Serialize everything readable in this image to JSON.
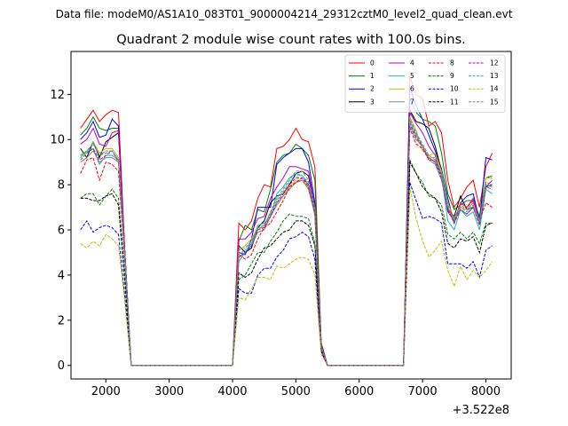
{
  "figure": {
    "suptitle": "Data file: modeM0/AS1A10_083T01_9000004214_29312cztM0_level2_quad_clean.evt"
  },
  "chart_data": {
    "type": "line",
    "title": "Quadrant 2 module wise count rates with 100.0s bins.",
    "xlabel": "",
    "ylabel": "",
    "x_offset_label": "+3.522e8",
    "xlim": [
      1450,
      8400
    ],
    "ylim": [
      -0.6,
      13.9
    ],
    "xticks": [
      2000,
      3000,
      4000,
      5000,
      6000,
      7000,
      8000
    ],
    "yticks": [
      0,
      2,
      4,
      6,
      8,
      10,
      12
    ],
    "grid": false,
    "legend": {
      "placement": "upper-right",
      "ncol": 4
    },
    "x": [
      1600,
      1700,
      1800,
      1900,
      2000,
      2100,
      2200,
      2300,
      2400,
      2500,
      2600,
      2700,
      2800,
      2900,
      3000,
      3100,
      3200,
      3300,
      3400,
      3500,
      3600,
      3700,
      3800,
      3900,
      4000,
      4100,
      4200,
      4300,
      4400,
      4500,
      4600,
      4700,
      4800,
      4900,
      5000,
      5100,
      5200,
      5300,
      5400,
      5500,
      5600,
      5700,
      5800,
      5900,
      6000,
      6100,
      6200,
      6300,
      6400,
      6500,
      6600,
      6700,
      6800,
      6900,
      7000,
      7100,
      7200,
      7300,
      7400,
      7500,
      7600,
      7700,
      7800,
      7900,
      8000,
      8100
    ],
    "series": [
      {
        "name": "0",
        "color": "#ff0000",
        "dash": false,
        "values": [
          10.5,
          10.9,
          11.3,
          10.8,
          11.1,
          11.3,
          11.2,
          5.0,
          0.0,
          0.0,
          0.0,
          0.0,
          0.0,
          0.0,
          0.0,
          0.0,
          0.0,
          0.0,
          0.0,
          0.0,
          0.0,
          0.0,
          0.0,
          0.0,
          0.0,
          6.3,
          6.0,
          6.4,
          7.4,
          8.0,
          7.9,
          9.6,
          9.7,
          10.0,
          10.5,
          10.0,
          9.9,
          8.8,
          1.0,
          0.0,
          0.0,
          0.0,
          0.0,
          0.0,
          0.0,
          0.0,
          0.0,
          0.0,
          0.0,
          0.0,
          0.0,
          0.0,
          12.8,
          12.0,
          11.8,
          10.6,
          10.8,
          10.3,
          8.2,
          7.0,
          7.4,
          7.9,
          8.2,
          7.0,
          8.8,
          9.4
        ]
      },
      {
        "name": "1",
        "color": "#008000",
        "dash": false,
        "values": [
          10.2,
          10.5,
          11.0,
          10.5,
          10.4,
          10.5,
          10.5,
          5.0,
          0.0,
          0.0,
          0.0,
          0.0,
          0.0,
          0.0,
          0.0,
          0.0,
          0.0,
          0.0,
          0.0,
          0.0,
          0.0,
          0.0,
          0.0,
          0.0,
          0.0,
          5.5,
          6.2,
          6.0,
          6.9,
          6.8,
          7.8,
          9.0,
          9.3,
          9.4,
          9.8,
          9.6,
          9.3,
          8.2,
          1.0,
          0.0,
          0.0,
          0.0,
          0.0,
          0.0,
          0.0,
          0.0,
          0.0,
          0.0,
          0.0,
          0.0,
          0.0,
          0.0,
          11.8,
          11.2,
          10.9,
          10.8,
          10.6,
          9.4,
          7.6,
          6.9,
          7.1,
          7.3,
          7.3,
          6.6,
          8.3,
          8.4
        ]
      },
      {
        "name": "2",
        "color": "#0000ff",
        "dash": false,
        "values": [
          10.0,
          10.3,
          10.8,
          10.1,
          10.2,
          10.9,
          10.6,
          5.0,
          0.0,
          0.0,
          0.0,
          0.0,
          0.0,
          0.0,
          0.0,
          0.0,
          0.0,
          0.0,
          0.0,
          0.0,
          0.0,
          0.0,
          0.0,
          0.0,
          0.0,
          5.0,
          4.9,
          5.6,
          7.0,
          7.0,
          7.0,
          8.9,
          9.2,
          9.4,
          9.6,
          9.6,
          9.0,
          7.2,
          0.9,
          0.0,
          0.0,
          0.0,
          0.0,
          0.0,
          0.0,
          0.0,
          0.0,
          0.0,
          0.0,
          0.0,
          0.0,
          0.0,
          12.3,
          11.5,
          10.9,
          10.2,
          9.5,
          8.7,
          7.4,
          6.3,
          7.2,
          7.5,
          7.6,
          6.4,
          9.2,
          9.1
        ]
      },
      {
        "name": "3",
        "color": "#000000",
        "dash": false,
        "values": [
          9.6,
          9.2,
          9.9,
          9.2,
          9.9,
          10.1,
          10.3,
          5.0,
          0.0,
          0.0,
          0.0,
          0.0,
          0.0,
          0.0,
          0.0,
          0.0,
          0.0,
          0.0,
          0.0,
          0.0,
          0.0,
          0.0,
          0.0,
          0.0,
          0.0,
          5.3,
          5.0,
          5.2,
          6.1,
          6.4,
          7.2,
          7.5,
          7.6,
          8.0,
          8.5,
          8.6,
          8.4,
          7.0,
          0.9,
          0.0,
          0.0,
          0.0,
          0.0,
          0.0,
          0.0,
          0.0,
          0.0,
          0.0,
          0.0,
          0.0,
          0.0,
          0.0,
          11.3,
          10.8,
          10.7,
          10.5,
          9.7,
          8.6,
          6.9,
          6.6,
          7.5,
          6.9,
          7.0,
          6.3,
          7.9,
          8.0
        ]
      },
      {
        "name": "4",
        "color": "#bf00bf",
        "dash": false,
        "values": [
          9.8,
          10.0,
          10.5,
          9.8,
          9.7,
          10.3,
          10.4,
          5.0,
          0.0,
          0.0,
          0.0,
          0.0,
          0.0,
          0.0,
          0.0,
          0.0,
          0.0,
          0.0,
          0.0,
          0.0,
          0.0,
          0.0,
          0.0,
          0.0,
          0.0,
          5.6,
          5.6,
          5.9,
          6.5,
          6.6,
          7.4,
          7.9,
          8.3,
          8.8,
          8.8,
          8.7,
          8.6,
          7.0,
          0.9,
          0.0,
          0.0,
          0.0,
          0.0,
          0.0,
          0.0,
          0.0,
          0.0,
          0.0,
          0.0,
          0.0,
          0.0,
          0.0,
          11.2,
          10.7,
          10.3,
          9.7,
          9.3,
          8.4,
          6.8,
          6.4,
          7.2,
          7.0,
          7.4,
          6.4,
          7.9,
          8.2
        ]
      },
      {
        "name": "5",
        "color": "#20b2aa",
        "dash": false,
        "values": [
          9.2,
          9.5,
          9.6,
          8.9,
          9.3,
          9.3,
          9.1,
          4.8,
          0.0,
          0.0,
          0.0,
          0.0,
          0.0,
          0.0,
          0.0,
          0.0,
          0.0,
          0.0,
          0.0,
          0.0,
          0.0,
          0.0,
          0.0,
          0.0,
          0.0,
          4.6,
          5.0,
          5.4,
          6.2,
          6.3,
          6.6,
          7.6,
          7.9,
          8.3,
          8.5,
          8.4,
          8.0,
          6.9,
          0.8,
          0.0,
          0.0,
          0.0,
          0.0,
          0.0,
          0.0,
          0.0,
          0.0,
          0.0,
          0.0,
          0.0,
          0.0,
          0.0,
          10.8,
          10.2,
          9.7,
          9.2,
          9.0,
          8.4,
          6.4,
          6.0,
          6.9,
          6.6,
          6.8,
          6.0,
          7.8,
          7.6
        ]
      },
      {
        "name": "6",
        "color": "#bfbf00",
        "dash": false,
        "values": [
          9.3,
          9.4,
          9.9,
          9.4,
          9.6,
          9.6,
          9.2,
          4.8,
          0.0,
          0.0,
          0.0,
          0.0,
          0.0,
          0.0,
          0.0,
          0.0,
          0.0,
          0.0,
          0.0,
          0.0,
          0.0,
          0.0,
          0.0,
          0.0,
          0.0,
          5.1,
          5.3,
          5.6,
          6.1,
          6.1,
          6.8,
          7.2,
          7.5,
          7.9,
          8.2,
          8.2,
          7.9,
          6.6,
          0.8,
          0.0,
          0.0,
          0.0,
          0.0,
          0.0,
          0.0,
          0.0,
          0.0,
          0.0,
          0.0,
          0.0,
          0.0,
          0.0,
          11.0,
          10.4,
          9.5,
          9.3,
          9.4,
          8.6,
          7.2,
          6.5,
          7.0,
          6.9,
          7.2,
          6.3,
          8.3,
          8.3
        ]
      },
      {
        "name": "7",
        "color": "#808080",
        "dash": false,
        "values": [
          9.0,
          9.2,
          9.5,
          9.0,
          9.2,
          9.2,
          9.0,
          4.7,
          0.0,
          0.0,
          0.0,
          0.0,
          0.0,
          0.0,
          0.0,
          0.0,
          0.0,
          0.0,
          0.0,
          0.0,
          0.0,
          0.0,
          0.0,
          0.0,
          0.0,
          4.8,
          5.0,
          5.3,
          5.9,
          6.0,
          6.6,
          7.1,
          7.5,
          7.8,
          8.1,
          8.2,
          7.8,
          6.7,
          0.8,
          0.0,
          0.0,
          0.0,
          0.0,
          0.0,
          0.0,
          0.0,
          0.0,
          0.0,
          0.0,
          0.0,
          0.0,
          0.0,
          10.6,
          10.0,
          9.7,
          9.1,
          8.9,
          8.2,
          7.0,
          6.4,
          6.9,
          6.7,
          7.0,
          6.3,
          8.0,
          7.9
        ]
      },
      {
        "name": "8",
        "color": "#ff0000",
        "dash": true,
        "values": [
          8.5,
          9.1,
          9.2,
          8.2,
          9.0,
          8.9,
          8.6,
          4.5,
          0.0,
          0.0,
          0.0,
          0.0,
          0.0,
          0.0,
          0.0,
          0.0,
          0.0,
          0.0,
          0.0,
          0.0,
          0.0,
          0.0,
          0.0,
          0.0,
          0.0,
          4.9,
          4.7,
          4.9,
          5.6,
          6.1,
          6.3,
          6.8,
          7.3,
          7.9,
          8.1,
          8.3,
          7.9,
          6.8,
          0.8,
          0.0,
          0.0,
          0.0,
          0.0,
          0.0,
          0.0,
          0.0,
          0.0,
          0.0,
          0.0,
          0.0,
          0.0,
          0.0,
          10.5,
          9.8,
          9.6,
          9.1,
          9.1,
          8.4,
          7.0,
          6.3,
          7.2,
          7.0,
          7.3,
          6.4,
          7.2,
          7.0
        ]
      },
      {
        "name": "9",
        "color": "#008000",
        "dash": true,
        "values": [
          7.4,
          7.6,
          7.6,
          7.1,
          7.5,
          7.8,
          7.4,
          3.9,
          0.0,
          0.0,
          0.0,
          0.0,
          0.0,
          0.0,
          0.0,
          0.0,
          0.0,
          0.0,
          0.0,
          0.0,
          0.0,
          0.0,
          0.0,
          0.0,
          0.0,
          3.8,
          4.0,
          4.5,
          5.0,
          5.0,
          5.5,
          5.9,
          6.4,
          6.7,
          6.6,
          6.6,
          6.5,
          5.4,
          0.7,
          0.0,
          0.0,
          0.0,
          0.0,
          0.0,
          0.0,
          0.0,
          0.0,
          0.0,
          0.0,
          0.0,
          0.0,
          0.0,
          9.1,
          8.5,
          8.1,
          7.5,
          7.4,
          7.1,
          5.8,
          5.6,
          5.9,
          5.6,
          5.9,
          5.4,
          6.3,
          6.3
        ]
      },
      {
        "name": "10",
        "color": "#0000ff",
        "dash": true,
        "values": [
          6.0,
          6.4,
          5.9,
          6.1,
          6.2,
          6.1,
          5.8,
          3.0,
          0.0,
          0.0,
          0.0,
          0.0,
          0.0,
          0.0,
          0.0,
          0.0,
          0.0,
          0.0,
          0.0,
          0.0,
          0.0,
          0.0,
          0.0,
          0.0,
          0.0,
          3.4,
          3.2,
          3.2,
          4.0,
          4.3,
          4.3,
          4.8,
          5.1,
          5.6,
          5.7,
          5.9,
          5.7,
          4.7,
          0.6,
          0.0,
          0.0,
          0.0,
          0.0,
          0.0,
          0.0,
          0.0,
          0.0,
          0.0,
          0.0,
          0.0,
          0.0,
          0.0,
          8.1,
          7.3,
          6.5,
          6.6,
          6.5,
          6.3,
          4.5,
          4.5,
          4.5,
          4.3,
          4.6,
          3.9,
          5.1,
          5.3
        ]
      },
      {
        "name": "11",
        "color": "#000000",
        "dash": true,
        "values": [
          7.4,
          7.4,
          7.3,
          7.3,
          7.5,
          7.6,
          7.1,
          3.7,
          0.0,
          0.0,
          0.0,
          0.0,
          0.0,
          0.0,
          0.0,
          0.0,
          0.0,
          0.0,
          0.0,
          0.0,
          0.0,
          0.0,
          0.0,
          0.0,
          0.0,
          4.1,
          3.9,
          4.1,
          4.7,
          5.2,
          5.3,
          5.6,
          5.9,
          6.0,
          6.4,
          6.4,
          6.2,
          5.3,
          0.7,
          0.0,
          0.0,
          0.0,
          0.0,
          0.0,
          0.0,
          0.0,
          0.0,
          0.0,
          0.0,
          0.0,
          0.0,
          0.0,
          9.0,
          8.5,
          7.9,
          7.6,
          7.4,
          6.8,
          5.4,
          5.2,
          5.6,
          5.5,
          5.7,
          5.0,
          6.2,
          6.3
        ]
      },
      {
        "name": "12",
        "color": "#bf00bf",
        "dash": true,
        "values": [
          9.1,
          9.4,
          9.6,
          9.1,
          9.3,
          9.5,
          9.0,
          4.7,
          0.0,
          0.0,
          0.0,
          0.0,
          0.0,
          0.0,
          0.0,
          0.0,
          0.0,
          0.0,
          0.0,
          0.0,
          0.0,
          0.0,
          0.0,
          0.0,
          0.0,
          4.8,
          5.0,
          5.3,
          6.0,
          6.1,
          6.6,
          7.2,
          7.6,
          8.0,
          8.3,
          8.3,
          8.0,
          6.8,
          0.8,
          0.0,
          0.0,
          0.0,
          0.0,
          0.0,
          0.0,
          0.0,
          0.0,
          0.0,
          0.0,
          0.0,
          0.0,
          0.0,
          10.7,
          10.1,
          9.7,
          9.2,
          9.0,
          8.3,
          6.9,
          6.3,
          6.9,
          6.7,
          7.0,
          6.2,
          7.9,
          7.8
        ]
      },
      {
        "name": "13",
        "color": "#20b2aa",
        "dash": true,
        "values": [
          9.3,
          9.5,
          9.8,
          9.3,
          9.4,
          9.5,
          9.1,
          4.8,
          0.0,
          0.0,
          0.0,
          0.0,
          0.0,
          0.0,
          0.0,
          0.0,
          0.0,
          0.0,
          0.0,
          0.0,
          0.0,
          0.0,
          0.0,
          0.0,
          0.0,
          4.9,
          5.1,
          5.4,
          6.0,
          6.2,
          6.7,
          7.3,
          7.7,
          8.1,
          8.4,
          8.4,
          8.1,
          6.9,
          0.8,
          0.0,
          0.0,
          0.0,
          0.0,
          0.0,
          0.0,
          0.0,
          0.0,
          0.0,
          0.0,
          0.0,
          0.0,
          0.0,
          10.9,
          10.3,
          9.8,
          9.3,
          9.1,
          8.4,
          7.0,
          6.4,
          7.0,
          6.8,
          7.1,
          6.3,
          8.0,
          7.9
        ]
      },
      {
        "name": "14",
        "color": "#bfbf00",
        "dash": true,
        "values": [
          5.4,
          5.2,
          5.5,
          5.3,
          5.8,
          5.6,
          5.3,
          2.8,
          0.0,
          0.0,
          0.0,
          0.0,
          0.0,
          0.0,
          0.0,
          0.0,
          0.0,
          0.0,
          0.0,
          0.0,
          0.0,
          0.0,
          0.0,
          0.0,
          0.0,
          3.0,
          2.9,
          3.4,
          3.9,
          3.9,
          3.8,
          4.4,
          4.3,
          4.5,
          4.7,
          4.8,
          4.7,
          4.0,
          0.5,
          0.0,
          0.0,
          0.0,
          0.0,
          0.0,
          0.0,
          0.0,
          0.0,
          0.0,
          0.0,
          0.0,
          0.0,
          0.0,
          7.9,
          6.5,
          5.5,
          4.8,
          5.1,
          5.5,
          4.2,
          3.5,
          4.4,
          3.8,
          4.2,
          3.9,
          4.2,
          4.6
        ]
      },
      {
        "name": "15",
        "color": "#808080",
        "dash": true,
        "values": [
          9.1,
          9.4,
          9.9,
          9.3,
          9.5,
          9.5,
          9.1,
          4.8,
          0.0,
          0.0,
          0.0,
          0.0,
          0.0,
          0.0,
          0.0,
          0.0,
          0.0,
          0.0,
          0.0,
          0.0,
          0.0,
          0.0,
          0.0,
          0.0,
          0.0,
          5.1,
          5.2,
          5.5,
          6.1,
          6.2,
          6.8,
          7.4,
          7.8,
          8.2,
          8.6,
          8.6,
          8.2,
          7.0,
          0.8,
          0.0,
          0.0,
          0.0,
          0.0,
          0.0,
          0.0,
          0.0,
          0.0,
          0.0,
          0.0,
          0.0,
          0.0,
          0.0,
          10.9,
          10.3,
          9.7,
          9.2,
          9.2,
          8.5,
          7.1,
          6.5,
          7.1,
          6.9,
          7.2,
          6.4,
          8.1,
          8.0
        ]
      }
    ]
  }
}
